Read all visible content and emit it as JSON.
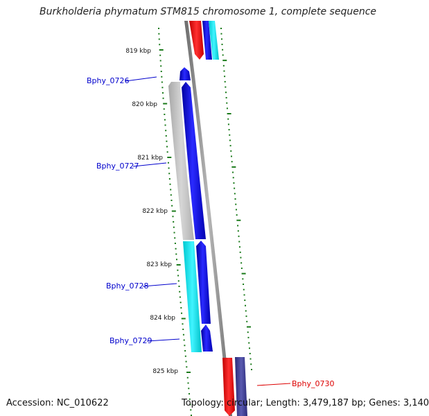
{
  "title": "Burkholderia phymatum STM815 chromosome 1, complete sequence",
  "accession_text": "Accession: NC_010622",
  "summary_text": "Topology: circular; Length: 3,479,187 bp; Genes: 3,140",
  "ticks": [
    "819 kbp",
    "820 kbp",
    "821 kbp",
    "822 kbp",
    "823 kbp",
    "824 kbp",
    "825 kbp"
  ],
  "genes": [
    {
      "label": "Bphy_0726",
      "color": "#0000cc"
    },
    {
      "label": "Bphy_0727",
      "color": "#0000cc"
    },
    {
      "label": "Bphy_0728",
      "color": "#0000cc"
    },
    {
      "label": "Bphy_0729",
      "color": "#0000cc"
    },
    {
      "label": "Bphy_0730",
      "color": "#dd0000"
    }
  ],
  "colors": {
    "backbone": "#808080",
    "tick_green": "#1a7a1a",
    "feature_blue": "#0000ee",
    "feature_red": "#ff0000",
    "feature_cyan": "#00e5ee",
    "feature_gray": "#c0c0c0",
    "feature_navy": "#3b3b8f"
  }
}
